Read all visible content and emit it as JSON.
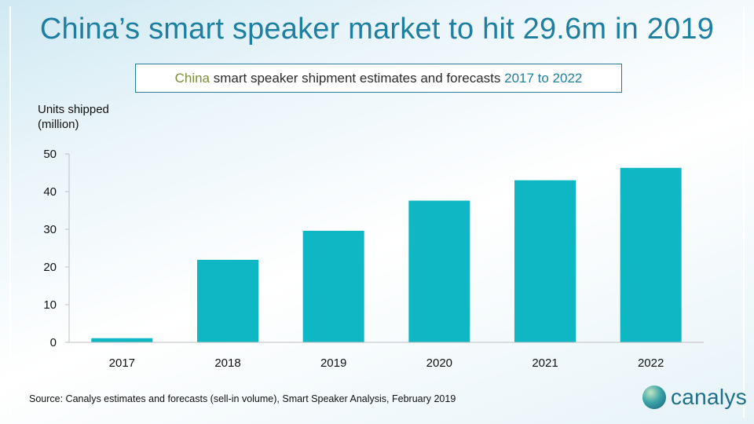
{
  "title": "China’s smart speaker market to hit 29.6m in 2019",
  "subtitle": {
    "part1": "China",
    "part2": " smart speaker shipment estimates and forecasts ",
    "part3": "2017 to 2022"
  },
  "source": "Source: Canalys estimates and forecasts (sell-in volume), Smart Speaker Analysis, February 2019",
  "logo": {
    "text": "canalys"
  },
  "colors": {
    "bar": "#0fb7c4",
    "title": "#1e7fa0",
    "accent_green": "#7c8f3a"
  },
  "chart_data": {
    "type": "bar",
    "categories": [
      "2017",
      "2018",
      "2019",
      "2020",
      "2021",
      "2022"
    ],
    "values": [
      1.1,
      21.9,
      29.6,
      37.6,
      43.0,
      46.3
    ],
    "ylabel": "Units shipped\n(million)",
    "ylim": [
      0,
      50
    ],
    "yticks": [
      0,
      10,
      20,
      30,
      40,
      50
    ],
    "grid": false,
    "legend": "none"
  }
}
